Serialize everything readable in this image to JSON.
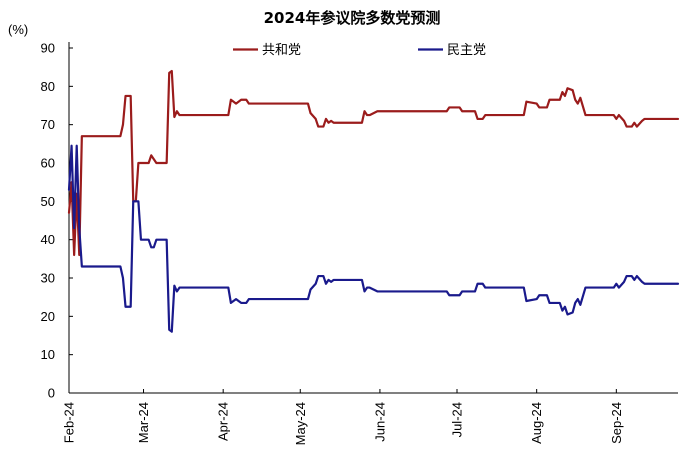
{
  "chart_data": {
    "type": "line",
    "title": "2024年参议院多数党预测",
    "ylabel": "(%)",
    "xlabel": "",
    "ylim": [
      0,
      90
    ],
    "yticks": [
      0,
      10,
      20,
      30,
      40,
      50,
      60,
      70,
      80,
      90
    ],
    "x_range": [
      "2024-02-01",
      "2024-09-25"
    ],
    "x_ticks": [
      {
        "date": "2024-02-01",
        "label": "Feb-24"
      },
      {
        "date": "2024-03-01",
        "label": "Mar-24"
      },
      {
        "date": "2024-04-01",
        "label": "Apr-24"
      },
      {
        "date": "2024-05-01",
        "label": "May-24"
      },
      {
        "date": "2024-06-01",
        "label": "Jun-24"
      },
      {
        "date": "2024-07-01",
        "label": "Jul-24"
      },
      {
        "date": "2024-08-01",
        "label": "Aug-24"
      },
      {
        "date": "2024-09-01",
        "label": "Sep-24"
      }
    ],
    "grid": false,
    "legend_position": "top",
    "series": [
      {
        "name": "共和党",
        "color": "#9b1c1c",
        "points": [
          [
            "2024-02-01",
            47
          ],
          [
            "2024-02-02",
            55
          ],
          [
            "2024-02-03",
            36
          ],
          [
            "2024-02-04",
            52
          ],
          [
            "2024-02-05",
            36
          ],
          [
            "2024-02-06",
            67
          ],
          [
            "2024-02-21",
            67
          ],
          [
            "2024-02-22",
            70
          ],
          [
            "2024-02-23",
            77.5
          ],
          [
            "2024-02-25",
            77.5
          ],
          [
            "2024-02-26",
            50
          ],
          [
            "2024-02-27",
            50
          ],
          [
            "2024-02-28",
            60
          ],
          [
            "2024-03-03",
            60
          ],
          [
            "2024-03-04",
            62
          ],
          [
            "2024-03-06",
            60
          ],
          [
            "2024-03-10",
            60
          ],
          [
            "2024-03-11",
            83.5
          ],
          [
            "2024-03-12",
            84
          ],
          [
            "2024-03-13",
            72
          ],
          [
            "2024-03-14",
            73.5
          ],
          [
            "2024-03-15",
            72.5
          ],
          [
            "2024-04-03",
            72.5
          ],
          [
            "2024-04-04",
            76.5
          ],
          [
            "2024-04-05",
            76
          ],
          [
            "2024-04-06",
            75.5
          ],
          [
            "2024-04-08",
            76.5
          ],
          [
            "2024-04-10",
            76.5
          ],
          [
            "2024-04-11",
            75.5
          ],
          [
            "2024-05-04",
            75.5
          ],
          [
            "2024-05-05",
            73
          ],
          [
            "2024-05-07",
            71.5
          ],
          [
            "2024-05-08",
            69.5
          ],
          [
            "2024-05-10",
            69.5
          ],
          [
            "2024-05-11",
            71.5
          ],
          [
            "2024-05-12",
            70.5
          ],
          [
            "2024-05-13",
            71
          ],
          [
            "2024-05-14",
            70.5
          ],
          [
            "2024-05-25",
            70.5
          ],
          [
            "2024-05-26",
            73.5
          ],
          [
            "2024-05-27",
            72.5
          ],
          [
            "2024-05-28",
            72.5
          ],
          [
            "2024-05-31",
            73.5
          ],
          [
            "2024-06-27",
            73.5
          ],
          [
            "2024-06-28",
            74.5
          ],
          [
            "2024-07-02",
            74.5
          ],
          [
            "2024-07-03",
            73.5
          ],
          [
            "2024-07-08",
            73.5
          ],
          [
            "2024-07-09",
            71.5
          ],
          [
            "2024-07-11",
            71.5
          ],
          [
            "2024-07-12",
            72.5
          ],
          [
            "2024-07-27",
            72.5
          ],
          [
            "2024-07-28",
            76
          ],
          [
            "2024-08-01",
            75.5
          ],
          [
            "2024-08-02",
            74.5
          ],
          [
            "2024-08-05",
            74.5
          ],
          [
            "2024-08-06",
            76.5
          ],
          [
            "2024-08-10",
            76.5
          ],
          [
            "2024-08-11",
            78.5
          ],
          [
            "2024-08-12",
            77.5
          ],
          [
            "2024-08-13",
            79.5
          ],
          [
            "2024-08-15",
            79
          ],
          [
            "2024-08-16",
            76.5
          ],
          [
            "2024-08-17",
            75.5
          ],
          [
            "2024-08-18",
            77
          ],
          [
            "2024-08-20",
            72.5
          ],
          [
            "2024-08-31",
            72.5
          ],
          [
            "2024-09-01",
            71.5
          ],
          [
            "2024-09-02",
            72.5
          ],
          [
            "2024-09-04",
            71
          ],
          [
            "2024-09-05",
            69.5
          ],
          [
            "2024-09-07",
            69.5
          ],
          [
            "2024-09-08",
            70.5
          ],
          [
            "2024-09-09",
            69.5
          ],
          [
            "2024-09-11",
            71
          ],
          [
            "2024-09-12",
            71.5
          ],
          [
            "2024-09-25",
            71.5
          ]
        ]
      },
      {
        "name": "民主党",
        "color": "#1a1a8c",
        "points": [
          [
            "2024-02-01",
            53
          ],
          [
            "2024-02-02",
            64.5
          ],
          [
            "2024-02-03",
            43
          ],
          [
            "2024-02-04",
            64.5
          ],
          [
            "2024-02-05",
            43
          ],
          [
            "2024-02-06",
            33
          ],
          [
            "2024-02-21",
            33
          ],
          [
            "2024-02-22",
            30
          ],
          [
            "2024-02-23",
            22.5
          ],
          [
            "2024-02-25",
            22.5
          ],
          [
            "2024-02-26",
            50
          ],
          [
            "2024-02-28",
            50
          ],
          [
            "2024-02-29",
            40
          ],
          [
            "2024-03-03",
            40
          ],
          [
            "2024-03-04",
            38
          ],
          [
            "2024-03-05",
            38
          ],
          [
            "2024-03-06",
            40
          ],
          [
            "2024-03-10",
            40
          ],
          [
            "2024-03-11",
            16.5
          ],
          [
            "2024-03-12",
            16
          ],
          [
            "2024-03-13",
            28
          ],
          [
            "2024-03-14",
            26.5
          ],
          [
            "2024-03-15",
            27.5
          ],
          [
            "2024-04-03",
            27.5
          ],
          [
            "2024-04-04",
            23.5
          ],
          [
            "2024-04-05",
            24
          ],
          [
            "2024-04-06",
            24.5
          ],
          [
            "2024-04-08",
            23.5
          ],
          [
            "2024-04-10",
            23.5
          ],
          [
            "2024-04-11",
            24.5
          ],
          [
            "2024-05-04",
            24.5
          ],
          [
            "2024-05-05",
            27
          ],
          [
            "2024-05-07",
            28.5
          ],
          [
            "2024-05-08",
            30.5
          ],
          [
            "2024-05-10",
            30.5
          ],
          [
            "2024-05-11",
            28.5
          ],
          [
            "2024-05-12",
            29.5
          ],
          [
            "2024-05-13",
            29
          ],
          [
            "2024-05-14",
            29.5
          ],
          [
            "2024-05-25",
            29.5
          ],
          [
            "2024-05-26",
            26.5
          ],
          [
            "2024-05-27",
            27.5
          ],
          [
            "2024-05-28",
            27.5
          ],
          [
            "2024-05-31",
            26.5
          ],
          [
            "2024-06-27",
            26.5
          ],
          [
            "2024-06-28",
            25.5
          ],
          [
            "2024-07-02",
            25.5
          ],
          [
            "2024-07-03",
            26.5
          ],
          [
            "2024-07-08",
            26.5
          ],
          [
            "2024-07-09",
            28.5
          ],
          [
            "2024-07-11",
            28.5
          ],
          [
            "2024-07-12",
            27.5
          ],
          [
            "2024-07-27",
            27.5
          ],
          [
            "2024-07-28",
            24
          ],
          [
            "2024-08-01",
            24.5
          ],
          [
            "2024-08-02",
            25.5
          ],
          [
            "2024-08-05",
            25.5
          ],
          [
            "2024-08-06",
            23.5
          ],
          [
            "2024-08-10",
            23.5
          ],
          [
            "2024-08-11",
            21.5
          ],
          [
            "2024-08-12",
            22.5
          ],
          [
            "2024-08-13",
            20.5
          ],
          [
            "2024-08-15",
            21
          ],
          [
            "2024-08-16",
            23.5
          ],
          [
            "2024-08-17",
            24.5
          ],
          [
            "2024-08-18",
            23
          ],
          [
            "2024-08-20",
            27.5
          ],
          [
            "2024-08-31",
            27.5
          ],
          [
            "2024-09-01",
            28.5
          ],
          [
            "2024-09-02",
            27.5
          ],
          [
            "2024-09-04",
            29
          ],
          [
            "2024-09-05",
            30.5
          ],
          [
            "2024-09-07",
            30.5
          ],
          [
            "2024-09-08",
            29.5
          ],
          [
            "2024-09-09",
            30.5
          ],
          [
            "2024-09-11",
            29
          ],
          [
            "2024-09-12",
            28.5
          ],
          [
            "2024-09-25",
            28.5
          ]
        ]
      }
    ]
  }
}
